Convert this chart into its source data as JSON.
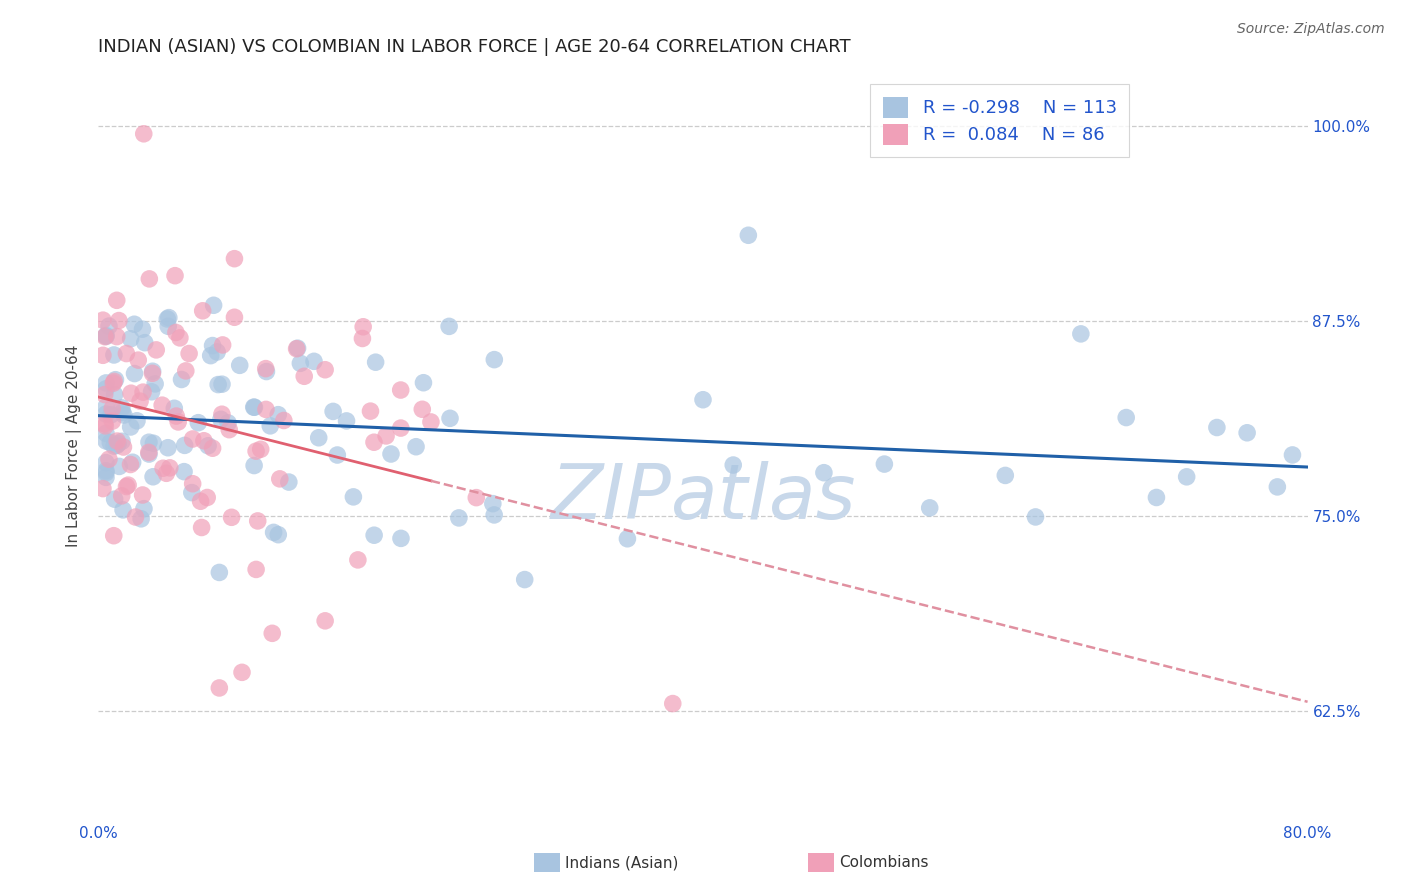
{
  "title": "INDIAN (ASIAN) VS COLOMBIAN IN LABOR FORCE | AGE 20-64 CORRELATION CHART",
  "source": "Source: ZipAtlas.com",
  "ylabel": "In Labor Force | Age 20-64",
  "xlim": [
    0.0,
    0.8
  ],
  "ylim": [
    0.555,
    1.035
  ],
  "ytick_positions": [
    0.625,
    0.75,
    0.875,
    1.0
  ],
  "ytick_labels": [
    "62.5%",
    "75.0%",
    "87.5%",
    "100.0%"
  ],
  "indian_R": -0.298,
  "indian_N": 113,
  "colombian_R": 0.084,
  "colombian_N": 86,
  "indian_color": "#a8c4e0",
  "colombian_color": "#f0a0b8",
  "indian_line_color": "#2060a8",
  "colombian_line_solid_color": "#e06070",
  "colombian_line_dash_color": "#e090a0",
  "legend_text_color": "#2255cc",
  "background_color": "#ffffff",
  "watermark_text": "ZIPatlas",
  "watermark_color": "#c8d8ea",
  "grid_color": "#cccccc",
  "title_fontsize": 13,
  "axis_label_fontsize": 11,
  "tick_label_color": "#2255cc"
}
